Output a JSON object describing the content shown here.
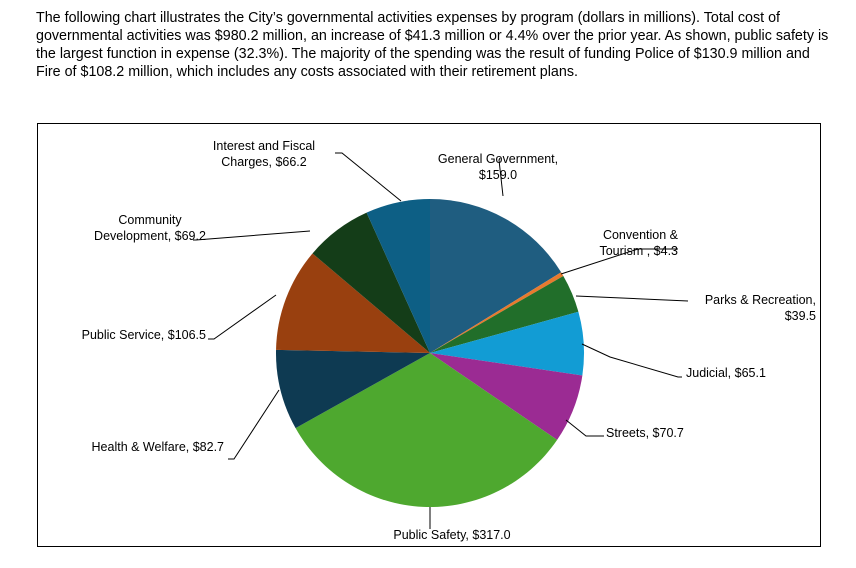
{
  "intro_text": "The following chart illustrates the City’s governmental activities expenses by program (dollars in millions). Total cost of governmental activities was $980.2 million, an increase of $41.3 million or 4.4% over the prior year. As shown, public safety is the largest function in expense (32.3%). The majority of the spending was the result of funding Police of $130.9 million and Fire of $108.2 million, which includes any costs associated with their retirement plans.",
  "chart_data": {
    "type": "pie",
    "categories": [
      "General Government",
      "Convention & Tourism",
      "Parks & Recreation",
      "Judicial",
      "Streets",
      "Public Safety",
      "Health & Welfare",
      "Public Service",
      "Community Development",
      "Interest and Fiscal Charges"
    ],
    "values": [
      159.0,
      4.3,
      39.5,
      65.1,
      70.7,
      317.0,
      82.7,
      106.5,
      69.2,
      66.2
    ],
    "colors": [
      "#1f5d80",
      "#e87a2e",
      "#216e2a",
      "#129cd4",
      "#9b2b93",
      "#4ea82f",
      "#0e3a52",
      "#99400f",
      "#143d18",
      "#0d5f85"
    ],
    "labels": [
      [
        "General Government,",
        "$159.0"
      ],
      [
        "Convention &",
        "Tourism , $4.3"
      ],
      [
        "Parks & Recreation,",
        "$39.5"
      ],
      [
        "Judicial, $65.1"
      ],
      [
        "Streets, $70.7"
      ],
      [
        "Public Safety, $317.0"
      ],
      [
        "Health & Welfare, $82.7"
      ],
      [
        "Public Service, $106.5"
      ],
      [
        "Community",
        "Development, $69.2"
      ],
      [
        "Interest and Fiscal",
        "Charges, $66.2"
      ]
    ],
    "start": "12 o'clock",
    "direction": "clockwise"
  }
}
